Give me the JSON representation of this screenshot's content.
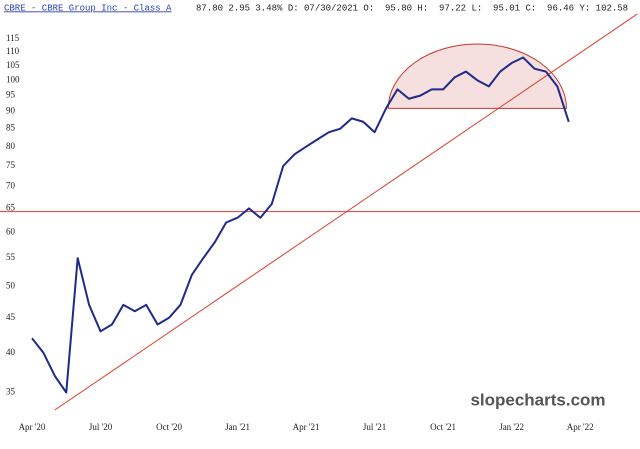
{
  "chart_data": {
    "type": "line",
    "title": "CBRE - CBRE Group Inc - Class A",
    "quote": "87.80 2.95 3.48% D: 07/30/2021 O:  95.80 H:  97.22 L:  95.01 C:  96.46 Y: 102.58",
    "watermark": "slopecharts.com",
    "log_scale": true,
    "ylim": [
      33,
      125
    ],
    "yticks": [
      35,
      40,
      45,
      50,
      55,
      60,
      65,
      70,
      75,
      80,
      85,
      90,
      95,
      100,
      105,
      110,
      115
    ],
    "categories": [
      "Apr '20",
      null,
      null,
      null,
      null,
      null,
      "Jul '20",
      null,
      null,
      null,
      null,
      null,
      "Oct '20",
      null,
      null,
      null,
      null,
      null,
      "Jan '21",
      null,
      null,
      null,
      null,
      null,
      "Apr '21",
      null,
      null,
      null,
      null,
      null,
      "Jul '21",
      null,
      null,
      null,
      null,
      null,
      "Oct '21",
      null,
      null,
      null,
      null,
      null,
      "Jan '22",
      null,
      null,
      null,
      null,
      null,
      "Apr '22"
    ],
    "series": [
      {
        "color": "#1f2a8a",
        "values": [
          42,
          40,
          37,
          35,
          55,
          47,
          43,
          44,
          47,
          46,
          47,
          44,
          45,
          47,
          52,
          55,
          58,
          62,
          63,
          65,
          63,
          66,
          75,
          78,
          80,
          82,
          84,
          85,
          88,
          87,
          84,
          91,
          97,
          94,
          95,
          97,
          97,
          101,
          103,
          100,
          98,
          103,
          106,
          108,
          104,
          103,
          98,
          87,
          null
        ]
      }
    ],
    "hline": 64.3,
    "trendline": {
      "from": [
        2,
        33
      ],
      "to": [
        53,
        125
      ]
    },
    "dome": {
      "from": 31.2,
      "to": 46.8,
      "base": 91,
      "top": 113
    }
  }
}
